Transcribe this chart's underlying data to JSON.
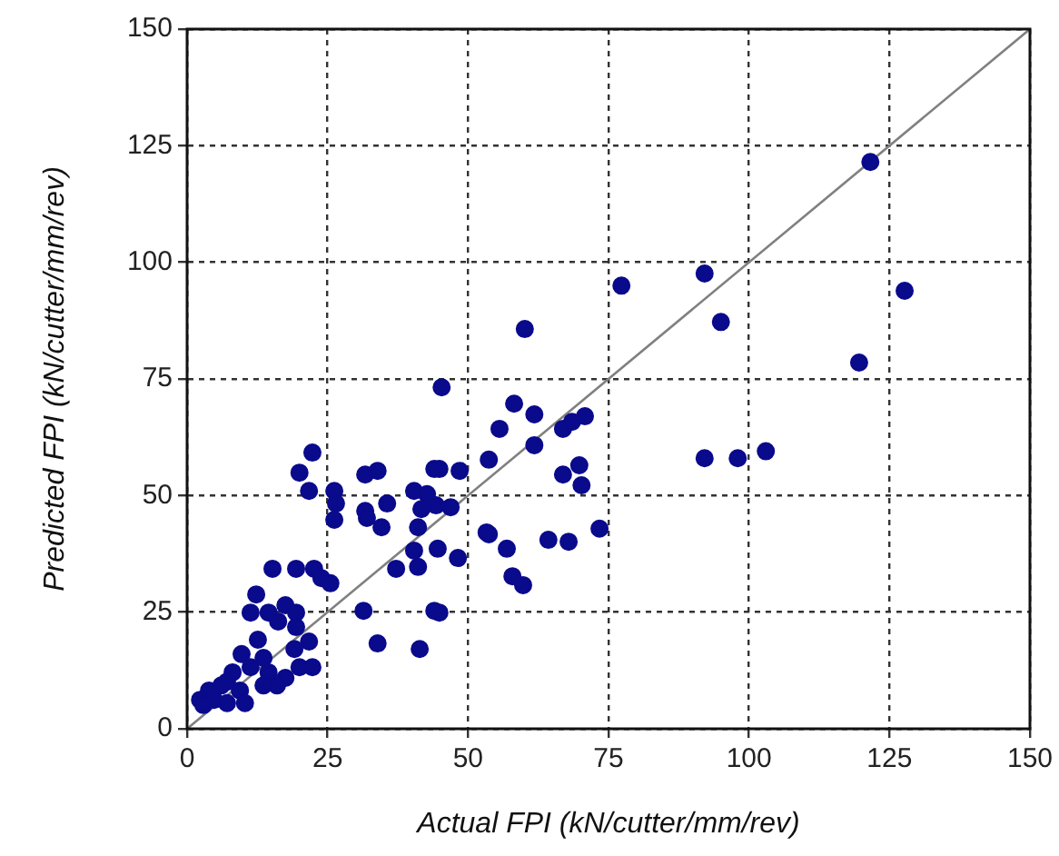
{
  "chart_data": {
    "type": "scatter",
    "xlabel": "Actual FPI (kN/cutter/mm/rev)",
    "ylabel": "Predicted FPI (kN/cutter/mm/rev)",
    "xlim": [
      0,
      150
    ],
    "ylim": [
      0,
      150
    ],
    "xticks": [
      0,
      25,
      50,
      75,
      100,
      125,
      150
    ],
    "yticks": [
      0,
      25,
      50,
      75,
      100,
      125,
      150
    ],
    "grid": true,
    "marker": "circle",
    "series": [
      {
        "type": "scatter",
        "color": "#0a0a8c",
        "x": [
          121.6,
          127.7,
          119.6,
          92.1,
          95,
          92.1,
          98,
          103,
          77.3,
          60.1,
          45.3,
          58.2,
          61.8,
          55.6,
          66.9,
          68.5,
          70.8,
          61.8,
          53.7,
          66.9,
          69.8,
          70.2,
          44.9,
          48.5,
          53.7,
          56.9,
          67.9,
          73.4,
          57.9,
          59.8,
          48.2,
          44.6,
          44.9,
          22.3,
          20,
          21.7,
          26.2,
          31.7,
          33.9,
          44,
          35.6,
          40.4,
          42.7,
          41.7,
          44.3,
          46.9,
          26.5,
          31.7,
          32,
          34.6,
          26.2,
          41.1,
          53.3,
          64.3,
          15.2,
          19.4,
          22.6,
          23.9,
          25.5,
          12.3,
          37.2,
          41.1,
          40.4,
          31.4,
          44,
          33.9,
          41.4,
          11.3,
          14.5,
          17.5,
          19.4,
          16.2,
          19.4,
          21.7,
          19.1,
          12.6,
          9.7,
          13.6,
          11.3,
          8.1,
          7.1,
          6.1,
          3.9,
          2.3,
          4.8,
          9.4,
          14.5,
          20,
          22.3,
          17.5,
          13.6,
          10.3,
          7.1,
          2.9,
          16
        ],
        "values": [
          121.5,
          93.9,
          78.5,
          97.6,
          87.2,
          58,
          58,
          59.5,
          95,
          85.7,
          73.2,
          69.7,
          67.4,
          64.3,
          64.3,
          65.8,
          67,
          60.8,
          57.7,
          54.5,
          56.5,
          52.2,
          55.7,
          55.3,
          41.7,
          38.6,
          40.1,
          42.9,
          32.7,
          30.8,
          36.6,
          38.6,
          24.9,
          59.2,
          54.9,
          51,
          51,
          54.5,
          55.3,
          55.7,
          48.3,
          51,
          50.3,
          47.1,
          47.9,
          47.5,
          48.3,
          46.7,
          45.2,
          43.2,
          44.8,
          43.2,
          42.1,
          40.5,
          34.3,
          34.3,
          34.3,
          32.3,
          31.2,
          28.8,
          34.3,
          34.7,
          38.2,
          25.3,
          25.3,
          18.3,
          17.1,
          24.9,
          24.9,
          26.5,
          24.9,
          23,
          21.8,
          18.7,
          17.1,
          19.1,
          16,
          15.2,
          13.2,
          12.1,
          10.1,
          9.3,
          8.2,
          6.2,
          6.2,
          8.2,
          12.1,
          13.2,
          13.2,
          10.9,
          9.3,
          5.5,
          5.5,
          5.1,
          9.3
        ]
      },
      {
        "type": "line",
        "color": "#808080",
        "x": [
          0,
          150
        ],
        "values": [
          0,
          150
        ],
        "marker": "none"
      }
    ]
  }
}
